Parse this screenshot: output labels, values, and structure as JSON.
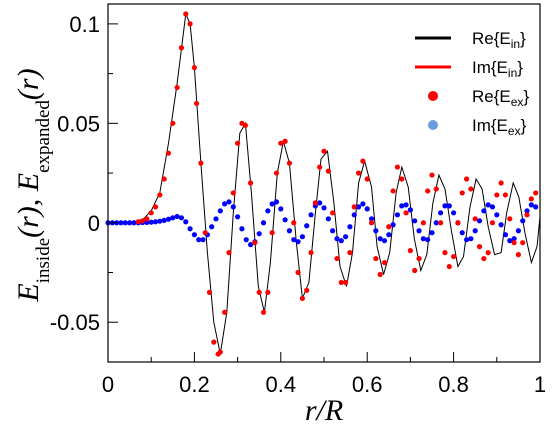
{
  "chart_data": {
    "type": "line",
    "xlabel": "r/R",
    "ylabel_parts": {
      "first_main": "E",
      "first_sub": "inside",
      "first_arg": "(r), ",
      "second_main": "E",
      "second_sub": "expanded",
      "second_arg": "(r)"
    },
    "xlim": [
      0,
      1
    ],
    "ylim": [
      -0.07,
      0.11
    ],
    "x_ticks": [
      0,
      0.2,
      0.4,
      0.6,
      0.8,
      1
    ],
    "x_tick_labels": [
      "0",
      "0.2",
      "0.4",
      "0.6",
      "0.8",
      "1"
    ],
    "y_ticks": [
      -0.05,
      0,
      0.05,
      0.1
    ],
    "y_tick_labels": [
      "-0.05",
      "0",
      "0.05",
      "0.1"
    ],
    "grid": false,
    "legend_position": "top-right",
    "legend": [
      {
        "main": "Re{E",
        "sub": "in",
        "close": "}",
        "marker": "line",
        "color": "#000000"
      },
      {
        "main": "Im{E",
        "sub": "in",
        "close": "}",
        "marker": "line",
        "color": "#ff0000"
      },
      {
        "main": "Re{E",
        "sub": "ex",
        "close": "}",
        "marker": "dot",
        "color": "#ff0000"
      },
      {
        "main": "Im{E",
        "sub": "ex",
        "close": "}",
        "marker": "dot",
        "color": "#6a9be0"
      }
    ],
    "colors": {
      "re_in_line": "#000000",
      "re_ex_points": "#ff0000",
      "blue_points": "#0000ff"
    },
    "series": [
      {
        "name": "Re{E_in}",
        "style": "line",
        "x": [
          0,
          0.05,
          0.08,
          0.1,
          0.12,
          0.14,
          0.16,
          0.18,
          0.19,
          0.2,
          0.215,
          0.23,
          0.245,
          0.26,
          0.275,
          0.29,
          0.305,
          0.318,
          0.332,
          0.348,
          0.362,
          0.376,
          0.392,
          0.406,
          0.42,
          0.436,
          0.45,
          0.465,
          0.48,
          0.493,
          0.508,
          0.523,
          0.537,
          0.552,
          0.566,
          0.58,
          0.594,
          0.61,
          0.623,
          0.638,
          0.652,
          0.667,
          0.68,
          0.695,
          0.709,
          0.724,
          0.738,
          0.752,
          0.766,
          0.78,
          0.795,
          0.81,
          0.823,
          0.838,
          0.852,
          0.866,
          0.88,
          0.895,
          0.91,
          0.923,
          0.938,
          0.951,
          0.965,
          0.98,
          0.993,
          1.0
        ],
        "y": [
          0,
          0.0002,
          0.0015,
          0.006,
          0.015,
          0.04,
          0.07,
          0.105,
          0.1,
          0.078,
          0.03,
          -0.015,
          -0.05,
          -0.066,
          -0.045,
          0.005,
          0.045,
          0.05,
          0.015,
          -0.032,
          -0.045,
          -0.02,
          0.025,
          0.041,
          0.03,
          -0.01,
          -0.038,
          -0.03,
          0.005,
          0.032,
          0.036,
          0.01,
          -0.022,
          -0.032,
          -0.015,
          0.02,
          0.031,
          0.018,
          -0.012,
          -0.026,
          -0.015,
          0.015,
          0.028,
          0.018,
          -0.008,
          -0.024,
          -0.016,
          0.01,
          0.024,
          0.017,
          -0.004,
          -0.022,
          -0.017,
          0.008,
          0.022,
          0.017,
          -0.002,
          -0.016,
          -0.015,
          0.005,
          0.02,
          0.013,
          -0.005,
          -0.02,
          -0.012,
          0.003
        ]
      },
      {
        "name": "Re{E_ex}",
        "style": "points",
        "x": [
          0.07,
          0.08,
          0.09,
          0.1,
          0.11,
          0.12,
          0.13,
          0.14,
          0.15,
          0.16,
          0.17,
          0.18,
          0.19,
          0.2,
          0.205,
          0.215,
          0.225,
          0.235,
          0.245,
          0.255,
          0.26,
          0.27,
          0.28,
          0.29,
          0.3,
          0.31,
          0.318,
          0.33,
          0.34,
          0.35,
          0.36,
          0.37,
          0.38,
          0.39,
          0.4,
          0.41,
          0.42,
          0.43,
          0.44,
          0.45,
          0.46,
          0.47,
          0.48,
          0.49,
          0.5,
          0.51,
          0.52,
          0.53,
          0.54,
          0.55,
          0.56,
          0.57,
          0.58,
          0.59,
          0.6,
          0.61,
          0.62,
          0.63,
          0.64,
          0.65,
          0.66,
          0.67,
          0.68,
          0.69,
          0.7,
          0.71,
          0.72,
          0.73,
          0.74,
          0.75,
          0.76,
          0.77,
          0.78,
          0.79,
          0.8,
          0.81,
          0.82,
          0.83,
          0.84,
          0.85,
          0.86,
          0.87,
          0.88,
          0.89,
          0.9,
          0.91,
          0.92,
          0.93,
          0.94,
          0.95,
          0.96,
          0.97,
          0.98,
          0.99
        ],
        "y": [
          0.0005,
          0.001,
          0.002,
          0.005,
          0.008,
          0.014,
          0.022,
          0.035,
          0.05,
          0.068,
          0.088,
          0.105,
          0.1,
          0.078,
          0.06,
          0.03,
          -0.005,
          -0.035,
          -0.06,
          -0.066,
          -0.065,
          -0.045,
          -0.015,
          0.015,
          0.04,
          0.05,
          0.049,
          0.02,
          -0.01,
          -0.035,
          -0.045,
          -0.035,
          -0.005,
          0.025,
          0.04,
          0.041,
          0.03,
          0.0,
          -0.025,
          -0.038,
          -0.034,
          -0.015,
          0.01,
          0.028,
          0.036,
          0.026,
          0.005,
          -0.018,
          -0.03,
          -0.03,
          -0.015,
          0.008,
          0.025,
          0.031,
          0.022,
          0.0,
          -0.018,
          -0.026,
          -0.02,
          -0.002,
          0.016,
          0.028,
          0.022,
          0.005,
          -0.014,
          -0.024,
          -0.018,
          0.0,
          0.016,
          0.024,
          0.017,
          0.0,
          -0.015,
          -0.022,
          -0.017,
          0.0,
          0.015,
          0.022,
          0.017,
          0.002,
          -0.012,
          -0.018,
          -0.015,
          0.0,
          0.014,
          0.02,
          0.014,
          0.002,
          -0.01,
          -0.016,
          -0.01,
          0.004,
          0.012,
          0.015
        ]
      },
      {
        "name": "Im{E_ex}",
        "style": "points",
        "x": [
          0.0,
          0.01,
          0.02,
          0.03,
          0.04,
          0.05,
          0.06,
          0.07,
          0.08,
          0.09,
          0.1,
          0.11,
          0.12,
          0.13,
          0.14,
          0.15,
          0.16,
          0.17,
          0.18,
          0.19,
          0.2,
          0.21,
          0.22,
          0.23,
          0.24,
          0.25,
          0.26,
          0.27,
          0.28,
          0.29,
          0.3,
          0.31,
          0.32,
          0.33,
          0.34,
          0.35,
          0.36,
          0.37,
          0.38,
          0.39,
          0.4,
          0.41,
          0.42,
          0.43,
          0.44,
          0.45,
          0.46,
          0.47,
          0.48,
          0.49,
          0.5,
          0.51,
          0.52,
          0.53,
          0.54,
          0.55,
          0.56,
          0.57,
          0.58,
          0.59,
          0.6,
          0.61,
          0.62,
          0.63,
          0.64,
          0.65,
          0.66,
          0.67,
          0.68,
          0.69,
          0.7,
          0.71,
          0.72,
          0.73,
          0.74,
          0.75,
          0.76,
          0.77,
          0.78,
          0.79,
          0.8,
          0.81,
          0.82,
          0.83,
          0.84,
          0.85,
          0.86,
          0.87,
          0.88,
          0.89,
          0.9,
          0.91,
          0.92,
          0.93,
          0.94,
          0.95,
          0.96,
          0.97,
          0.98,
          0.99
        ],
        "y": [
          0,
          0,
          0,
          0,
          0,
          0,
          0,
          0,
          0.0001,
          0.0002,
          0.0003,
          0.0005,
          0.0008,
          0.0012,
          0.0018,
          0.0025,
          0.0032,
          0.0025,
          0.0005,
          -0.003,
          -0.006,
          -0.0085,
          -0.0085,
          -0.006,
          -0.002,
          0.002,
          0.006,
          0.0095,
          0.0105,
          0.008,
          0.003,
          -0.003,
          -0.0085,
          -0.011,
          -0.0095,
          -0.0055,
          0.0,
          0.006,
          0.0095,
          0.0105,
          0.007,
          0.0015,
          -0.004,
          -0.0085,
          -0.0095,
          -0.007,
          -0.0015,
          0.004,
          0.0085,
          0.01,
          0.0075,
          0.002,
          -0.004,
          -0.008,
          -0.009,
          -0.007,
          -0.002,
          0.004,
          0.008,
          0.0095,
          0.007,
          0.002,
          -0.004,
          -0.008,
          -0.009,
          -0.006,
          -0.001,
          0.004,
          0.0085,
          0.009,
          0.0065,
          0.001,
          -0.004,
          -0.008,
          -0.0085,
          -0.005,
          0.0,
          0.005,
          0.0085,
          0.0085,
          0.005,
          0.0,
          -0.005,
          -0.0085,
          -0.008,
          -0.004,
          0.001,
          0.006,
          0.009,
          0.008,
          0.004,
          -0.001,
          -0.006,
          -0.009,
          -0.008,
          -0.004,
          0.001,
          0.006,
          0.009,
          0.008
        ]
      }
    ]
  }
}
